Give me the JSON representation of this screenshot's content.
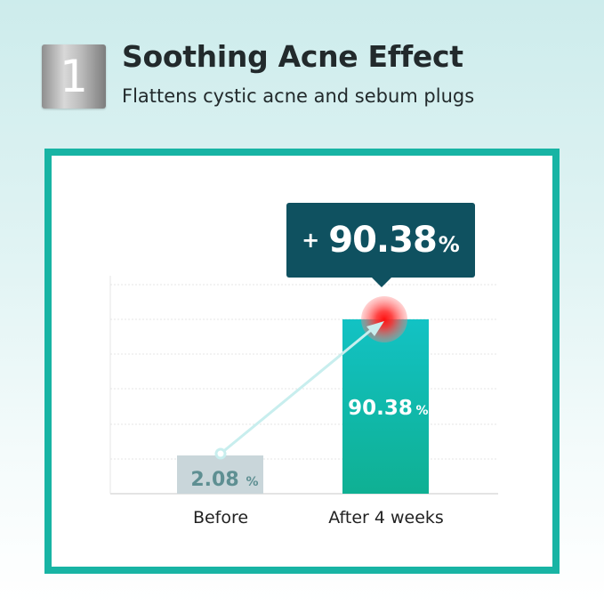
{
  "header": {
    "badge_number": "1",
    "title": "Soothing Acne Effect",
    "subtitle": "Flattens cystic acne and sebum plugs"
  },
  "callout": {
    "sign": "+",
    "value": "90.38",
    "unit": "%"
  },
  "colors": {
    "frame": "#18b4a4",
    "callout": "#0f5160",
    "before_bar": "#c9d6da",
    "after_bar_top": "#12c2c4",
    "after_bar_bottom": "#0fb093",
    "highlight": "#ff2a2a"
  },
  "chart_data": {
    "type": "bar",
    "categories": [
      "Before",
      "After 4 weeks"
    ],
    "values": [
      2.08,
      90.38
    ],
    "data_labels": [
      "2.08",
      "90.38"
    ],
    "unit": "%",
    "grid": true,
    "annotation": "+ 90.38%"
  }
}
